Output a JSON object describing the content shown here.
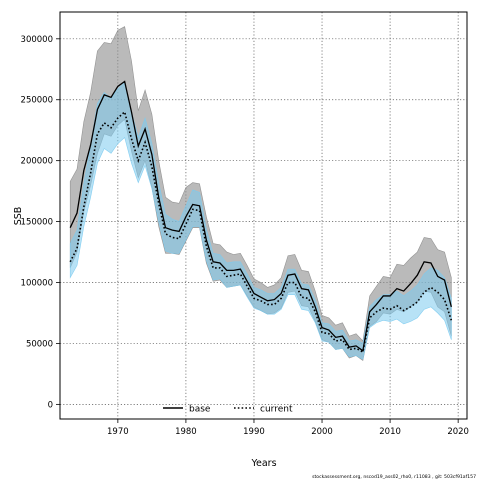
{
  "chart_data": {
    "type": "area",
    "title": "",
    "xlabel": "Years",
    "ylabel": "SSB",
    "xlim": [
      1961.5,
      2021.3
    ],
    "ylim": [
      -12000,
      322000
    ],
    "xticks": [
      1970,
      1980,
      1990,
      2000,
      2010,
      2020
    ],
    "yticks": [
      0,
      50000,
      100000,
      150000,
      200000,
      250000,
      300000
    ],
    "grid": true,
    "legend_position": "bottom-center",
    "footnote": "stockassessment.org, nscod19_ass02_rho0, r11083 , git: 503cf91af157",
    "years": [
      1963,
      1964,
      1965,
      1966,
      1967,
      1968,
      1969,
      1970,
      1971,
      1972,
      1973,
      1974,
      1975,
      1976,
      1977,
      1978,
      1979,
      1980,
      1981,
      1982,
      1983,
      1984,
      1985,
      1986,
      1987,
      1988,
      1989,
      1990,
      1991,
      1992,
      1993,
      1994,
      1995,
      1996,
      1997,
      1998,
      1999,
      2000,
      2001,
      2002,
      2003,
      2004,
      2005,
      2006,
      2007,
      2008,
      2009,
      2010,
      2011,
      2012,
      2013,
      2014,
      2015,
      2016,
      2017,
      2018,
      2019
    ],
    "series": [
      {
        "name": "base",
        "color": "#000000",
        "band_color": "#8c8c8c",
        "style": "solid",
        "values": [
          145000,
          157000,
          192000,
          213000,
          242000,
          254000,
          252000,
          261000,
          265000,
          240000,
          212000,
          226000,
          205000,
          170000,
          145000,
          143000,
          142000,
          154000,
          164000,
          163000,
          135000,
          117000,
          116000,
          110000,
          110000,
          111000,
          101000,
          91000,
          88000,
          85000,
          86000,
          91000,
          106000,
          107000,
          95000,
          94000,
          80000,
          63000,
          61000,
          55000,
          56000,
          47000,
          48000,
          44000,
          76000,
          82000,
          89000,
          89000,
          95000,
          93000,
          99000,
          106000,
          117000,
          116000,
          105000,
          102000,
          80000
        ],
        "lower": [
          112000,
          125000,
          158000,
          180000,
          206000,
          222000,
          220000,
          229000,
          234000,
          208000,
          186000,
          200000,
          178000,
          146000,
          124000,
          124000,
          123000,
          134000,
          145000,
          145000,
          116000,
          101000,
          102000,
          96000,
          97000,
          98000,
          89000,
          80000,
          77000,
          74000,
          75000,
          79000,
          92000,
          93000,
          81000,
          80000,
          68000,
          53000,
          51000,
          45000,
          46000,
          38000,
          40000,
          36000,
          64000,
          68000,
          75000,
          74000,
          78000,
          76000,
          80000,
          84000,
          93000,
          92000,
          80000,
          76000,
          56000
        ],
        "upper": [
          183000,
          193000,
          232000,
          256000,
          290000,
          297000,
          296000,
          307000,
          310000,
          282000,
          241000,
          258000,
          238000,
          200000,
          170000,
          166000,
          165000,
          178000,
          182000,
          181000,
          154000,
          132000,
          131000,
          125000,
          123000,
          124000,
          114000,
          103000,
          100000,
          96000,
          98000,
          104000,
          122000,
          123000,
          110000,
          109000,
          93000,
          73000,
          71000,
          65000,
          67000,
          56000,
          58000,
          52000,
          89000,
          97000,
          105000,
          104000,
          115000,
          114000,
          120000,
          125000,
          137000,
          136000,
          127000,
          125000,
          104000
        ]
      },
      {
        "name": "current",
        "color": "#000000",
        "band_color": "#7ccbef",
        "style": "dotted",
        "values": [
          117000,
          128000,
          162000,
          190000,
          222000,
          231000,
          227000,
          235000,
          240000,
          218000,
          200000,
          215000,
          195000,
          165000,
          140000,
          137000,
          136000,
          148000,
          160000,
          159000,
          130000,
          112000,
          112000,
          105000,
          106000,
          107000,
          97000,
          87000,
          85000,
          82000,
          82000,
          87000,
          100000,
          100000,
          88000,
          87000,
          76000,
          59000,
          58000,
          52000,
          53000,
          45000,
          46000,
          43000,
          71000,
          76000,
          79000,
          78000,
          81000,
          77000,
          80000,
          84000,
          92000,
          96000,
          92000,
          86000,
          69000
        ],
        "lower": [
          104000,
          114000,
          146000,
          170000,
          198000,
          210000,
          206000,
          214000,
          219000,
          198000,
          182000,
          196000,
          177000,
          150000,
          126000,
          124000,
          124000,
          135000,
          146000,
          146000,
          118000,
          102000,
          103000,
          96000,
          97000,
          98000,
          88000,
          79000,
          77000,
          74000,
          74000,
          78000,
          90000,
          90000,
          78000,
          77000,
          67000,
          52000,
          51000,
          45000,
          46000,
          39000,
          40000,
          37000,
          63000,
          67000,
          69000,
          68000,
          70000,
          66000,
          68000,
          71000,
          78000,
          80000,
          75000,
          69000,
          53000
        ],
        "upper": [
          132000,
          143000,
          181000,
          212000,
          247000,
          256000,
          251000,
          259000,
          264000,
          240000,
          219000,
          235000,
          214000,
          182000,
          156000,
          152000,
          150000,
          163000,
          176000,
          174000,
          144000,
          124000,
          123000,
          116000,
          117000,
          117000,
          107000,
          96000,
          94000,
          91000,
          91000,
          96000,
          111000,
          111000,
          99000,
          98000,
          86000,
          67000,
          66000,
          60000,
          61000,
          52000,
          53000,
          50000,
          80000,
          86000,
          90000,
          90000,
          93000,
          89000,
          93000,
          98000,
          107000,
          112000,
          110000,
          104000,
          87000
        ]
      }
    ]
  }
}
